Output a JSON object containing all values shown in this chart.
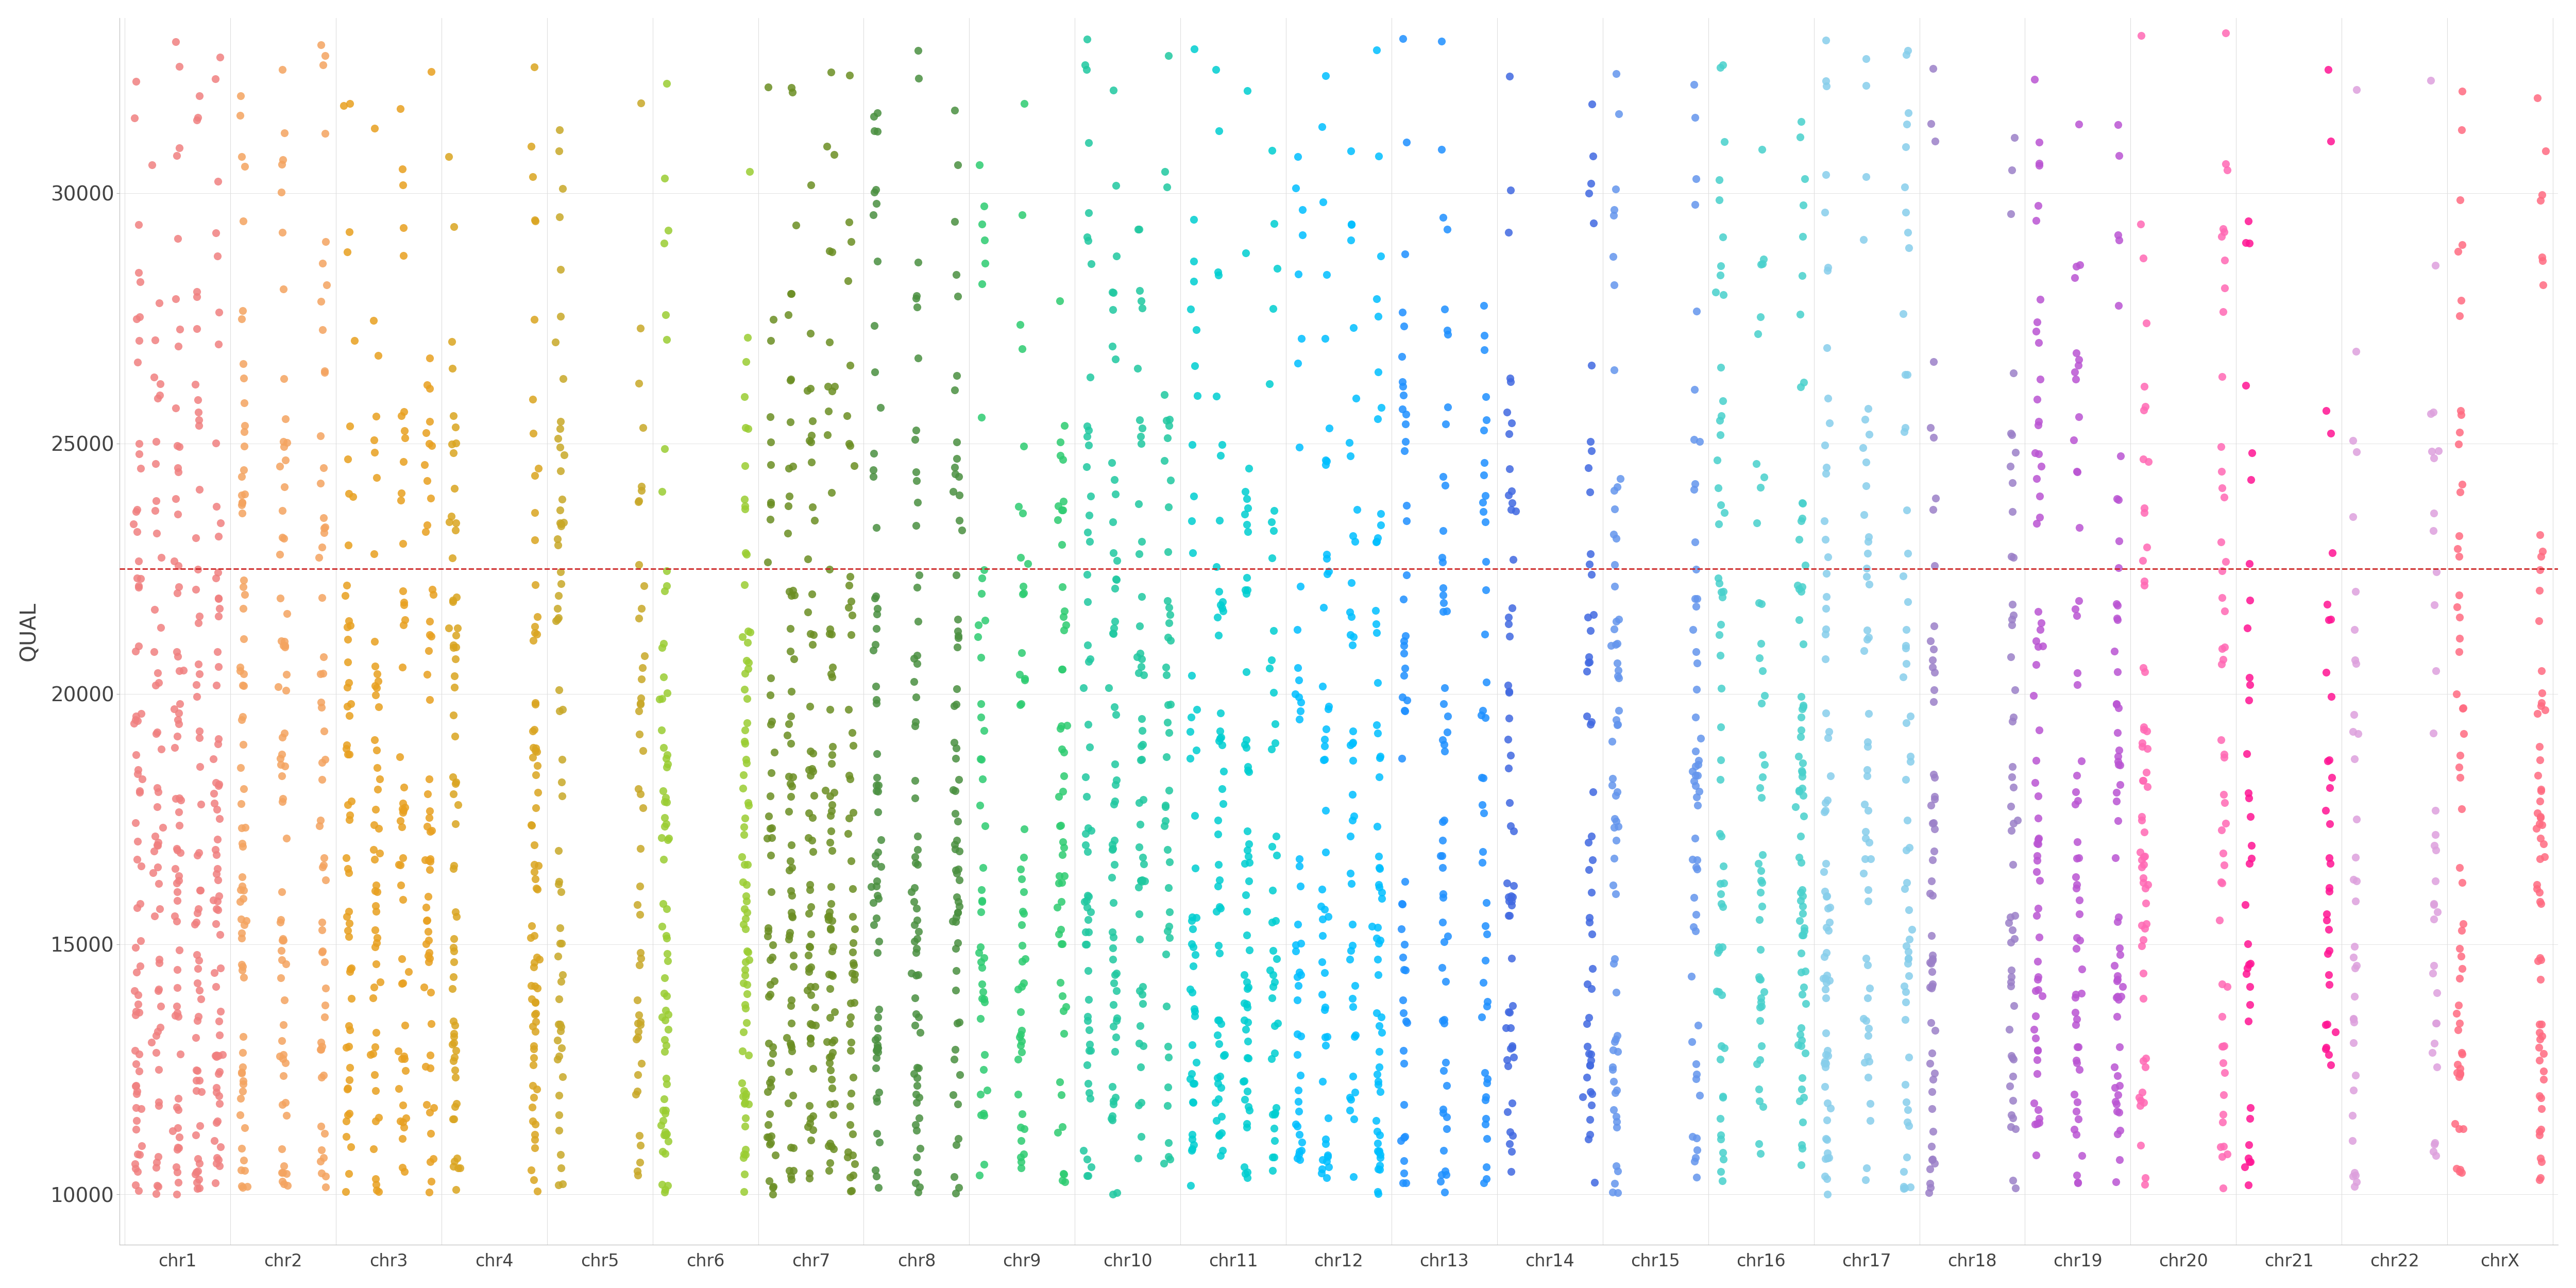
{
  "chromosomes": [
    "chr1",
    "chr2",
    "chr3",
    "chr4",
    "chr5",
    "chr6",
    "chr7",
    "chr8",
    "chr9",
    "chr10",
    "chr11",
    "chr12",
    "chr13",
    "chr14",
    "chr15",
    "chr16",
    "chr17",
    "chr18",
    "chr19",
    "chr20",
    "chr21",
    "chr22",
    "chrX"
  ],
  "chr_colors": {
    "chr1": "#F08080",
    "chr2": "#F4A460",
    "chr3": "#E8A020",
    "chr4": "#DAA520",
    "chr5": "#C8A828",
    "chr6": "#9ACD32",
    "chr7": "#6B8E23",
    "chr8": "#4A9040",
    "chr9": "#2ECC71",
    "chr10": "#20C8A0",
    "chr11": "#00CED1",
    "chr12": "#00BFFF",
    "chr13": "#1E90FF",
    "chr14": "#4169E1",
    "chr15": "#6495ED",
    "chr16": "#48D1CC",
    "chr17": "#87CEEB",
    "chr18": "#9B80C8",
    "chr19": "#BA55D3",
    "chr20": "#FF69B4",
    "chr21": "#FF1493",
    "chr22": "#DDA0DD",
    "chrX": "#FF6B81"
  },
  "ylim": [
    9000,
    33500
  ],
  "yticks": [
    10000,
    15000,
    20000,
    25000,
    30000
  ],
  "ylabel": "QUAL",
  "threshold_line": 22500,
  "threshold_color": "#CC2222",
  "background_color": "#FFFFFF",
  "grid_color": "#DDDDDD",
  "dot_size": 120,
  "dot_alpha": 0.85,
  "seed": 42,
  "chr_n_points": {
    "chr1": 320,
    "chr2": 200,
    "chr3": 220,
    "chr4": 140,
    "chr5": 110,
    "chr6": 150,
    "chr7": 300,
    "chr8": 200,
    "chr9": 150,
    "chr10": 220,
    "chr11": 200,
    "chr12": 200,
    "chr13": 150,
    "chr14": 110,
    "chr15": 120,
    "chr16": 180,
    "chr17": 180,
    "chr18": 110,
    "chr19": 180,
    "chr20": 110,
    "chr21": 70,
    "chr22": 70,
    "chrX": 120
  },
  "chr_n_subcols": {
    "chr1": 5,
    "chr2": 3,
    "chr3": 4,
    "chr4": 2,
    "chr5": 2,
    "chr6": 2,
    "chr7": 5,
    "chr8": 3,
    "chr9": 3,
    "chr10": 4,
    "chr11": 4,
    "chr12": 4,
    "chr13": 3,
    "chr14": 2,
    "chr15": 2,
    "chr16": 3,
    "chr17": 3,
    "chr18": 2,
    "chr19": 3,
    "chr20": 2,
    "chr21": 2,
    "chr22": 2,
    "chrX": 2
  }
}
